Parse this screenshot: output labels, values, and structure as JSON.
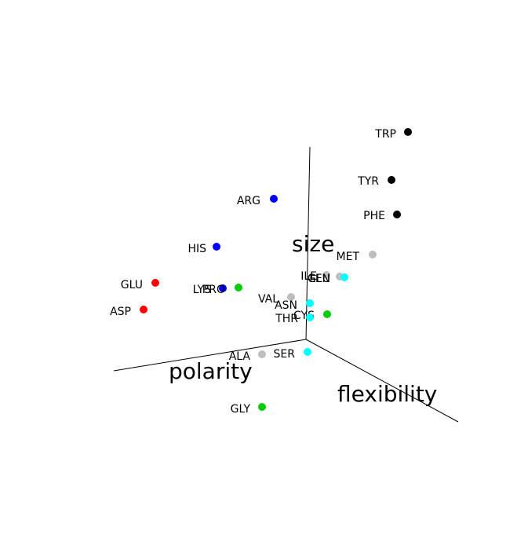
{
  "chart_data": {
    "type": "scatter",
    "projection": "3d",
    "title": "",
    "axes": {
      "x": "polarity",
      "y": "flexibility",
      "z": "size"
    },
    "grid": false,
    "legend": "none",
    "color_groups": {
      "black": "#000000",
      "blue": "#0000ff",
      "red": "#ff0000",
      "green": "#00cc00",
      "gray": "#bebebe",
      "cyan": "#00ffff"
    },
    "points": [
      {
        "label": "TRP",
        "color": "#000000"
      },
      {
        "label": "TYR",
        "color": "#000000"
      },
      {
        "label": "PHE",
        "color": "#000000"
      },
      {
        "label": "ARG",
        "color": "#0000ff"
      },
      {
        "label": "HIS",
        "color": "#0000ff"
      },
      {
        "label": "LYS",
        "color": "#0000ff"
      },
      {
        "label": "GLU",
        "color": "#ff0000"
      },
      {
        "label": "ASP",
        "color": "#ff0000"
      },
      {
        "label": "PRO",
        "color": "#00cc00"
      },
      {
        "label": "CYS",
        "color": "#00cc00"
      },
      {
        "label": "GLY",
        "color": "#00cc00"
      },
      {
        "label": "MET",
        "color": "#bebebe"
      },
      {
        "label": "ILE",
        "color": "#bebebe"
      },
      {
        "label": "LEU",
        "color": "#bebebe"
      },
      {
        "label": "VAL",
        "color": "#bebebe"
      },
      {
        "label": "ALA",
        "color": "#bebebe"
      },
      {
        "label": "GLN",
        "color": "#00ffff"
      },
      {
        "label": "ASN",
        "color": "#00ffff"
      },
      {
        "label": "THR",
        "color": "#00ffff"
      },
      {
        "label": "SER",
        "color": "#00ffff"
      }
    ]
  }
}
